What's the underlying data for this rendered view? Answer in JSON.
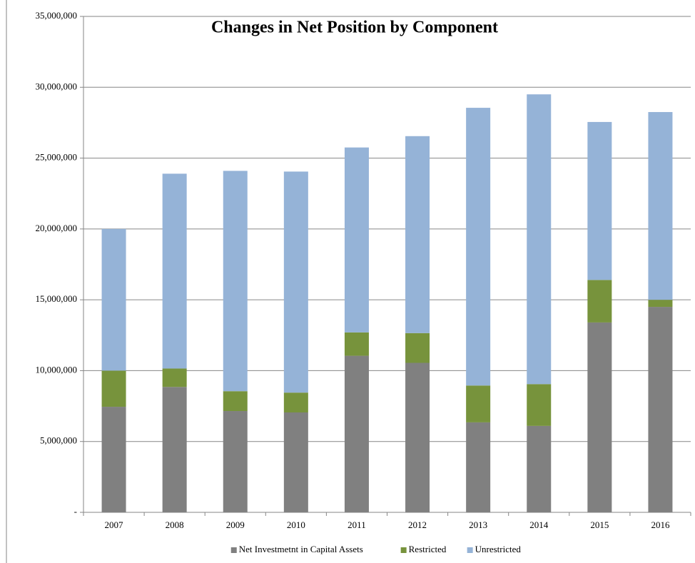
{
  "chart_data": {
    "type": "stacked_bar",
    "title": "Changes in Net Position by Component",
    "categories": [
      "2007",
      "2008",
      "2009",
      "2010",
      "2011",
      "2012",
      "2013",
      "2014",
      "2015",
      "2016"
    ],
    "series": [
      {
        "name": "Net Investmetnt in Capital Assets",
        "color": "#808080",
        "values": [
          7450000,
          8850000,
          7150000,
          7050000,
          11050000,
          10550000,
          6350000,
          6100000,
          13400000,
          14500000
        ]
      },
      {
        "name": "Restricted",
        "color": "#77933c",
        "values": [
          2550000,
          1300000,
          1400000,
          1400000,
          1650000,
          2100000,
          2600000,
          2950000,
          3000000,
          500000
        ]
      },
      {
        "name": "Unrestricted",
        "color": "#95b3d7",
        "values": [
          10000000,
          13750000,
          15550000,
          15600000,
          13050000,
          13900000,
          19600000,
          20450000,
          11150000,
          13250000
        ]
      }
    ],
    "ylim": [
      0,
      35000000
    ],
    "yticks": [
      {
        "value": 0,
        "label": "-"
      },
      {
        "value": 5000000,
        "label": "5,000,000"
      },
      {
        "value": 10000000,
        "label": "10,000,000"
      },
      {
        "value": 15000000,
        "label": "15,000,000"
      },
      {
        "value": 20000000,
        "label": "20,000,000"
      },
      {
        "value": 25000000,
        "label": "25,000,000"
      },
      {
        "value": 30000000,
        "label": "30,000,000"
      },
      {
        "value": 35000000,
        "label": "35,000,000"
      }
    ],
    "grid": true,
    "legend": "bottom"
  }
}
